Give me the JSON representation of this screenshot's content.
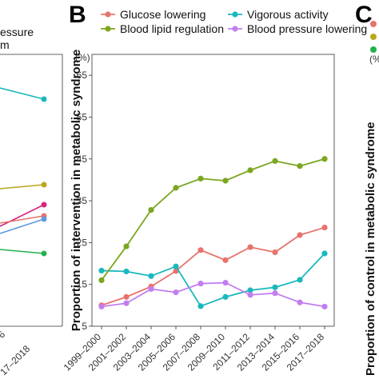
{
  "panels": {
    "left_fragment": {
      "legend_lines": [
        "essure",
        "m"
      ],
      "x_tick_fragments": [
        "6",
        "17–2018"
      ]
    },
    "center": {
      "letter": "B"
    },
    "right_fragment": {
      "letter": "C",
      "ylabel": "Proportion of control in metabolic syndrome",
      "unit": "(%"
    }
  },
  "chart_data": {
    "type": "line",
    "ylabel": "Proportion of intervention in metabolic syndrome",
    "yunit": "(%)",
    "ylim": [
      5,
      70
    ],
    "yticks": [
      5,
      15,
      25,
      35,
      45,
      55,
      65
    ],
    "categories": [
      "1999–2000",
      "2001–2002",
      "2003–2004",
      "2005–2006",
      "2007–2008",
      "2009–2010",
      "2011–2012",
      "2013–2014",
      "2015–2016",
      "2017–2018"
    ],
    "legend_position": "top",
    "grid": false,
    "series": [
      {
        "name": "Glucose lowering",
        "color": "#e8736c",
        "values": [
          10.0,
          12.0,
          14.5,
          18.2,
          23.2,
          20.8,
          23.9,
          22.7,
          26.8,
          28.6
        ]
      },
      {
        "name": "Vigorous activity",
        "color": "#1ab8bd",
        "values": [
          18.3,
          18.1,
          17.0,
          19.3,
          9.8,
          12.0,
          13.6,
          14.3,
          16.1,
          22.4
        ]
      },
      {
        "name": "Blood lipid regulation",
        "color": "#7ba61e",
        "values": [
          16.0,
          24.1,
          32.8,
          38.1,
          40.3,
          39.8,
          42.3,
          44.5,
          43.3,
          45.0
        ]
      },
      {
        "name": "Blood pressure lowering",
        "color": "#c27ef0",
        "values": [
          9.7,
          10.5,
          13.9,
          13.1,
          15.2,
          15.4,
          12.5,
          12.9,
          10.7,
          9.7
        ]
      }
    ],
    "legend_order": [
      0,
      1,
      2,
      3
    ]
  }
}
